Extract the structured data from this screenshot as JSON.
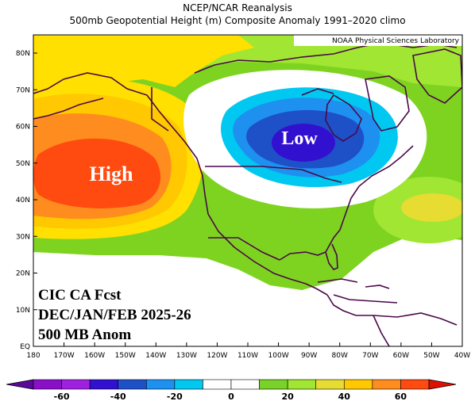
{
  "header": {
    "title": "NCEP/NCAR Reanalysis",
    "subtitle": "500mb Geopotential Height (m) Composite Anomaly 1991–2020 climo"
  },
  "credit": "NOAA Physical Sciences Laboratory",
  "annotations": {
    "high": "High",
    "low": "Low",
    "line1": "CIC CA Fcst",
    "line2": "DEC/JAN/FEB 2025-26",
    "line3": "500 MB Anom"
  },
  "axes": {
    "lat_labels": [
      "80N",
      "70N",
      "60N",
      "50N",
      "40N",
      "30N",
      "20N",
      "10N",
      "EQ"
    ],
    "lon_labels": [
      "180",
      "170W",
      "160W",
      "150W",
      "140W",
      "130W",
      "120W",
      "110W",
      "100W",
      "90W",
      "80W",
      "70W",
      "60W",
      "50W",
      "40W"
    ]
  },
  "colorbar": {
    "labels": [
      "-60",
      "-40",
      "-20",
      "0",
      "20",
      "40",
      "60"
    ],
    "colors": [
      "#8a10c8",
      "#a020e0",
      "#3210d0",
      "#1e50c8",
      "#1e90f0",
      "#00c8f0",
      "#ffffff",
      "#ffffff",
      "#78d228",
      "#a0e632",
      "#e6dc32",
      "#ffc800",
      "#ff8c1e",
      "#ff4a10"
    ]
  },
  "colors": {
    "green": "#7ed321",
    "lightgreen": "#a0e632",
    "yellow": "#ffe000",
    "gold": "#ffc800",
    "orange": "#ff8c1e",
    "red": "#ff4500",
    "white": "#ffffff",
    "cyan": "#00c8f0",
    "lightblue": "#1e90f0",
    "blue": "#1e50c8",
    "darkblue": "#3210d0",
    "coast": "#4a0848"
  }
}
